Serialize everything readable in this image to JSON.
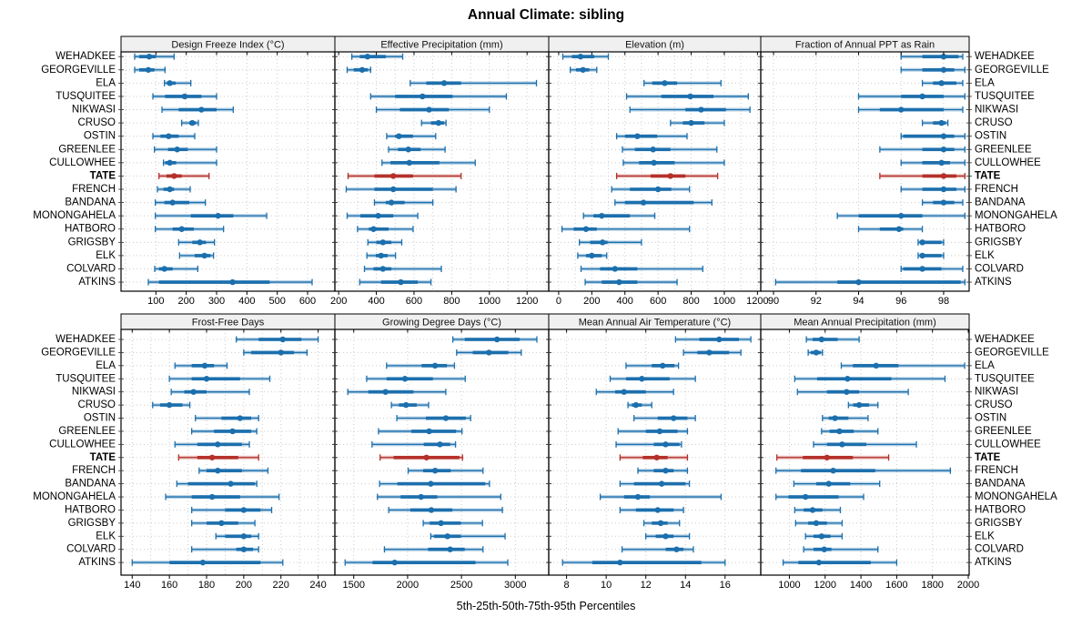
{
  "title": "Annual Climate: sibling",
  "footer": "5th-25th-50th-75th-95th Percentiles",
  "stations": [
    "WEHADKEE",
    "GEORGEVILLE",
    "ELA",
    "TUSQUITEE",
    "NIKWASI",
    "CRUSO",
    "OSTIN",
    "GREENLEE",
    "CULLOWHEE",
    "TATE",
    "FRENCH",
    "BANDANA",
    "MONONGAHELA",
    "HATBORO",
    "GRIGSBY",
    "ELK",
    "COLVARD",
    "ATKINS"
  ],
  "highlight_station": "TATE",
  "percentile_labels": [
    "5th",
    "25th",
    "50th",
    "75th",
    "95th"
  ],
  "colors": {
    "blue": "#1c6fad",
    "red": "#b5302a",
    "grid": "#cccccc",
    "header_bg": "#f0f0f0",
    "border": "#000000",
    "text": "#000000"
  },
  "chart_data": [
    {
      "type": "interval",
      "title": "Design Freeze Index (°C)",
      "xlim": [
        -15,
        690
      ],
      "ticks": [
        100,
        200,
        300,
        400,
        500,
        600
      ],
      "gridlines": [
        0,
        100,
        200,
        300,
        400,
        500,
        600
      ],
      "values": [
        [
          30,
          45,
          78,
          100,
          160
        ],
        [
          30,
          45,
          75,
          95,
          130
        ],
        [
          128,
          136,
          146,
          165,
          215
        ],
        [
          90,
          130,
          195,
          250,
          300
        ],
        [
          120,
          175,
          250,
          300,
          355
        ],
        [
          185,
          210,
          220,
          232,
          240
        ],
        [
          90,
          115,
          142,
          175,
          228
        ],
        [
          95,
          140,
          170,
          205,
          300
        ],
        [
          125,
          131,
          146,
          167,
          300
        ],
        [
          110,
          135,
          160,
          185,
          275
        ],
        [
          105,
          125,
          146,
          160,
          213
        ],
        [
          98,
          128,
          155,
          210,
          263
        ],
        [
          98,
          215,
          305,
          355,
          465
        ],
        [
          98,
          155,
          185,
          225,
          323
        ],
        [
          175,
          220,
          245,
          265,
          293
        ],
        [
          178,
          228,
          260,
          280,
          290
        ],
        [
          96,
          110,
          128,
          155,
          238
        ],
        [
          75,
          110,
          353,
          475,
          615
        ]
      ]
    },
    {
      "type": "interval",
      "title": "Effective Precipitation (mm)",
      "xlim": [
        180,
        1315
      ],
      "ticks": [
        200,
        400,
        600,
        800,
        1000,
        1200
      ],
      "gridlines": [
        200,
        300,
        400,
        500,
        600,
        700,
        800,
        900,
        1000,
        1100,
        1200,
        1300
      ],
      "values": [
        [
          270,
          312,
          353,
          450,
          540
        ],
        [
          245,
          280,
          325,
          355,
          370
        ],
        [
          580,
          665,
          760,
          850,
          1250
        ],
        [
          370,
          500,
          645,
          805,
          1090
        ],
        [
          400,
          525,
          680,
          785,
          1000
        ],
        [
          640,
          690,
          730,
          760,
          770
        ],
        [
          455,
          500,
          520,
          595,
          715
        ],
        [
          465,
          515,
          570,
          635,
          765
        ],
        [
          430,
          475,
          575,
          735,
          925
        ],
        [
          250,
          390,
          490,
          595,
          850
        ],
        [
          240,
          390,
          490,
          700,
          823
        ],
        [
          390,
          450,
          480,
          550,
          700
        ],
        [
          245,
          315,
          410,
          490,
          620
        ],
        [
          300,
          360,
          385,
          465,
          595
        ],
        [
          355,
          400,
          435,
          480,
          535
        ],
        [
          350,
          397,
          425,
          460,
          502
        ],
        [
          337,
          385,
          435,
          480,
          745
        ],
        [
          312,
          425,
          530,
          620,
          690
        ]
      ]
    },
    {
      "type": "interval",
      "title": "Elevation (m)",
      "xlim": [
        -60,
        1220
      ],
      "ticks": [
        0,
        200,
        400,
        600,
        800,
        1000,
        1200
      ],
      "gridlines": [
        0,
        100,
        200,
        300,
        400,
        500,
        600,
        700,
        800,
        900,
        1000,
        1100,
        1200
      ],
      "values": [
        [
          25,
          80,
          132,
          215,
          300
        ],
        [
          70,
          105,
          147,
          185,
          230
        ],
        [
          515,
          565,
          640,
          715,
          980
        ],
        [
          410,
          620,
          795,
          935,
          1145
        ],
        [
          430,
          765,
          860,
          1010,
          1155
        ],
        [
          675,
          750,
          800,
          880,
          1000
        ],
        [
          350,
          400,
          475,
          595,
          775
        ],
        [
          385,
          460,
          570,
          675,
          955
        ],
        [
          390,
          485,
          575,
          700,
          1000
        ],
        [
          350,
          555,
          675,
          765,
          960
        ],
        [
          320,
          430,
          600,
          680,
          790
        ],
        [
          340,
          400,
          512,
          815,
          925
        ],
        [
          150,
          210,
          260,
          430,
          580
        ],
        [
          20,
          90,
          165,
          230,
          790
        ],
        [
          125,
          190,
          265,
          295,
          500
        ],
        [
          115,
          165,
          200,
          260,
          290
        ],
        [
          135,
          250,
          340,
          475,
          870
        ],
        [
          160,
          260,
          365,
          475,
          715
        ]
      ]
    },
    {
      "type": "interval",
      "title": "Fraction of Annual PPT as Rain",
      "xlim": [
        89.4,
        99.2
      ],
      "ticks": [
        90,
        92,
        94,
        96,
        98
      ],
      "gridlines": [
        90,
        92,
        94,
        96,
        98
      ],
      "values": [
        [
          96.0,
          97.0,
          98.0,
          98.7,
          98.9
        ],
        [
          96.0,
          97.0,
          98.0,
          98.5,
          99.0
        ],
        [
          97.0,
          97.5,
          97.9,
          98.6,
          98.9
        ],
        [
          94.0,
          96.0,
          97.0,
          98.0,
          99.0
        ],
        [
          94.0,
          95.0,
          96.0,
          98.0,
          98.9
        ],
        [
          97.0,
          97.5,
          97.9,
          98.1,
          98.2
        ],
        [
          96.0,
          96.1,
          98.0,
          98.5,
          99.0
        ],
        [
          95.0,
          97.0,
          98.0,
          98.5,
          99.0
        ],
        [
          96.0,
          97.0,
          97.9,
          98.3,
          99.0
        ],
        [
          95.0,
          97.0,
          98.0,
          98.6,
          99.0
        ],
        [
          96.0,
          97.0,
          98.0,
          98.6,
          99.0
        ],
        [
          97.0,
          97.5,
          98.0,
          98.5,
          98.9
        ],
        [
          93.0,
          94.0,
          96.0,
          97.0,
          99.0
        ],
        [
          94.0,
          95.0,
          95.9,
          96.1,
          97.0
        ],
        [
          96.8,
          96.9,
          97.0,
          97.9,
          98.0
        ],
        [
          96.8,
          96.9,
          97.0,
          97.9,
          98.0
        ],
        [
          96.0,
          96.1,
          97.0,
          97.9,
          98.9
        ],
        [
          90.1,
          93.0,
          94.0,
          98.8,
          99.0
        ]
      ]
    },
    {
      "type": "interval",
      "title": "Frost-Free Days",
      "xlim": [
        134,
        249
      ],
      "ticks": [
        140,
        160,
        180,
        200,
        220,
        240
      ],
      "gridlines": [
        140,
        150,
        160,
        170,
        180,
        190,
        200,
        210,
        220,
        230,
        240
      ],
      "values": [
        [
          196,
          208,
          221,
          231,
          240
        ],
        [
          200,
          204,
          220,
          227,
          234
        ],
        [
          163,
          172,
          179,
          184,
          191
        ],
        [
          160,
          172,
          180,
          198,
          214
        ],
        [
          161,
          168,
          173,
          180,
          203
        ],
        [
          151,
          155,
          160,
          167,
          171
        ],
        [
          174,
          188,
          198,
          204,
          208
        ],
        [
          172,
          184,
          194,
          204,
          207
        ],
        [
          163,
          175,
          186,
          199,
          203
        ],
        [
          165,
          175,
          183,
          197,
          208
        ],
        [
          176,
          180,
          186,
          199,
          213
        ],
        [
          164,
          170,
          193,
          206,
          207
        ],
        [
          158,
          172,
          183,
          198,
          219
        ],
        [
          172,
          190,
          200,
          209,
          215
        ],
        [
          172,
          180,
          188,
          197,
          206
        ],
        [
          185,
          190,
          200,
          204,
          208
        ],
        [
          172,
          196,
          200,
          205,
          208
        ],
        [
          140,
          160,
          178,
          209,
          221
        ]
      ]
    },
    {
      "type": "interval",
      "title": "Growing Degree Days (°C)",
      "xlim": [
        1325,
        3310
      ],
      "ticks": [
        1500,
        2000,
        2500,
        3000
      ],
      "gridlines": [
        1500,
        2000,
        2500,
        3000
      ],
      "values": [
        [
          2420,
          2530,
          2830,
          3040,
          3200
        ],
        [
          2455,
          2605,
          2755,
          2935,
          3055
        ],
        [
          1805,
          2130,
          2255,
          2365,
          2435
        ],
        [
          1620,
          1805,
          1975,
          2235,
          2535
        ],
        [
          1445,
          1635,
          1795,
          2055,
          2355
        ],
        [
          1850,
          1920,
          1985,
          2085,
          2195
        ],
        [
          1900,
          2170,
          2355,
          2540,
          2585
        ],
        [
          1730,
          2035,
          2200,
          2450,
          2505
        ],
        [
          1670,
          2150,
          2300,
          2395,
          2445
        ],
        [
          1745,
          1870,
          2175,
          2480,
          2510
        ],
        [
          2005,
          2145,
          2255,
          2400,
          2700
        ],
        [
          1740,
          1905,
          2215,
          2720,
          2760
        ],
        [
          1720,
          1935,
          2125,
          2275,
          2865
        ],
        [
          1825,
          2025,
          2220,
          2415,
          2880
        ],
        [
          2145,
          2205,
          2310,
          2495,
          2695
        ],
        [
          2215,
          2245,
          2370,
          2495,
          2905
        ],
        [
          1785,
          2190,
          2395,
          2530,
          2700
        ],
        [
          1420,
          1675,
          1880,
          2630,
          2930
        ]
      ]
    },
    {
      "type": "interval",
      "title": "Mean Annual Air Temperature (°C)",
      "xlim": [
        7.1,
        17.8
      ],
      "ticks": [
        8,
        10,
        12,
        14,
        16
      ],
      "gridlines": [
        8,
        10,
        12,
        14,
        16
      ],
      "values": [
        [
          13.5,
          14.7,
          15.7,
          16.7,
          17.3
        ],
        [
          13.9,
          14.6,
          15.2,
          16.2,
          16.8
        ],
        [
          11.0,
          12.3,
          12.85,
          13.45,
          13.65
        ],
        [
          10.2,
          11.0,
          11.8,
          13.2,
          14.5
        ],
        [
          9.5,
          10.45,
          10.9,
          12.0,
          13.4
        ],
        [
          11.1,
          11.3,
          11.5,
          11.8,
          12.3
        ],
        [
          11.4,
          12.6,
          13.4,
          14.1,
          14.5
        ],
        [
          10.6,
          12.0,
          12.7,
          13.6,
          14.1
        ],
        [
          10.5,
          12.4,
          13.0,
          13.7,
          13.8
        ],
        [
          10.7,
          11.85,
          12.55,
          13.1,
          14.1
        ],
        [
          11.6,
          12.4,
          13.0,
          13.4,
          14.1
        ],
        [
          10.7,
          11.4,
          12.8,
          14.0,
          14.2
        ],
        [
          9.7,
          10.9,
          11.6,
          12.2,
          15.8
        ],
        [
          10.7,
          11.5,
          12.6,
          13.4,
          13.9
        ],
        [
          11.9,
          12.3,
          12.75,
          13.1,
          13.7
        ],
        [
          12.0,
          12.5,
          13.0,
          13.4,
          14.2
        ],
        [
          10.8,
          13.0,
          13.55,
          13.9,
          14.4
        ],
        [
          7.8,
          9.3,
          10.7,
          14.8,
          16.0
        ]
      ]
    },
    {
      "type": "interval",
      "title": "Mean Annual Precipitation (mm)",
      "xlim": [
        840,
        2005
      ],
      "ticks": [
        1000,
        1200,
        1400,
        1600,
        1800,
        2000
      ],
      "gridlines": [
        1000,
        1200,
        1400,
        1600,
        1800,
        2000
      ],
      "values": [
        [
          1095,
          1130,
          1180,
          1270,
          1390
        ],
        [
          1105,
          1120,
          1150,
          1175,
          1185
        ],
        [
          1290,
          1355,
          1485,
          1610,
          1980
        ],
        [
          1030,
          1155,
          1325,
          1570,
          1870
        ],
        [
          1045,
          1210,
          1320,
          1390,
          1665
        ],
        [
          1330,
          1357,
          1390,
          1445,
          1495
        ],
        [
          1185,
          1220,
          1255,
          1330,
          1440
        ],
        [
          1180,
          1225,
          1280,
          1360,
          1495
        ],
        [
          1135,
          1210,
          1295,
          1430,
          1710
        ],
        [
          930,
          1075,
          1210,
          1355,
          1555
        ],
        [
          925,
          1065,
          1245,
          1480,
          1900
        ],
        [
          1025,
          1150,
          1220,
          1340,
          1505
        ],
        [
          925,
          995,
          1090,
          1275,
          1415
        ],
        [
          1030,
          1080,
          1130,
          1185,
          1285
        ],
        [
          1035,
          1105,
          1150,
          1210,
          1295
        ],
        [
          1090,
          1135,
          1180,
          1230,
          1295
        ],
        [
          1080,
          1135,
          1195,
          1235,
          1495
        ],
        [
          965,
          1050,
          1165,
          1455,
          1600
        ]
      ]
    }
  ]
}
